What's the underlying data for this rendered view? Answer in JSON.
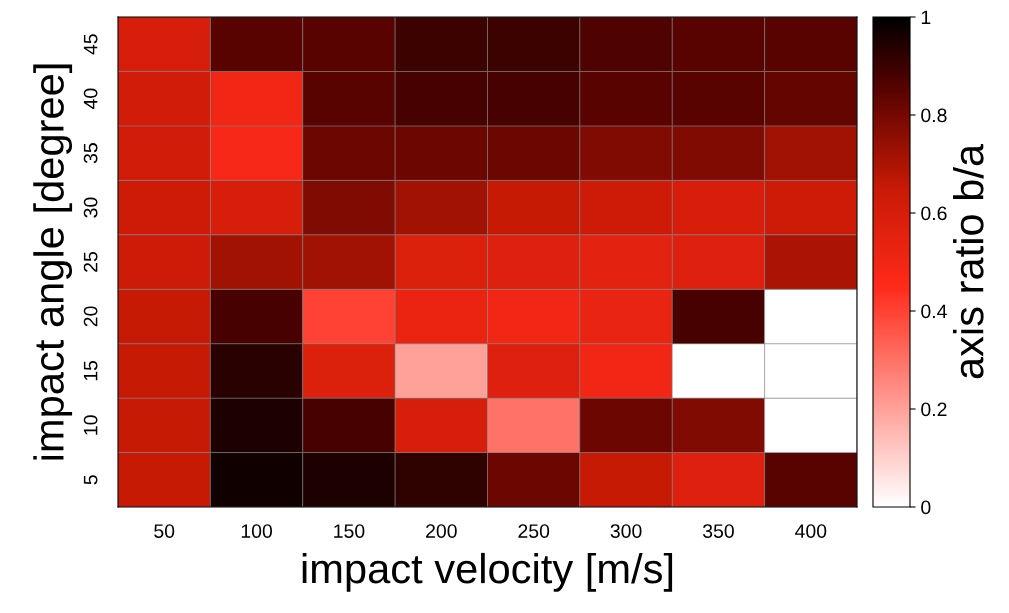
{
  "chart_data": {
    "type": "heatmap",
    "xlabel": "impact velocity [m/s]",
    "ylabel": "impact angle [degree]",
    "clabel": "axis ratio b/a",
    "categories": [
      "50",
      "100",
      "150",
      "200",
      "250",
      "300",
      "350",
      "400"
    ],
    "y_categories": [
      "45",
      "40",
      "35",
      "30",
      "25",
      "20",
      "15",
      "10",
      "5"
    ],
    "cells": [
      [
        0.6,
        0.85,
        0.85,
        0.9,
        0.9,
        0.87,
        0.85,
        0.85
      ],
      [
        0.62,
        0.5,
        0.85,
        0.88,
        0.88,
        0.85,
        0.85,
        0.83
      ],
      [
        0.62,
        0.48,
        0.82,
        0.82,
        0.82,
        0.78,
        0.78,
        0.72
      ],
      [
        0.63,
        0.6,
        0.78,
        0.72,
        0.65,
        0.63,
        0.6,
        0.63
      ],
      [
        0.63,
        0.72,
        0.72,
        0.58,
        0.57,
        0.55,
        0.57,
        0.7
      ],
      [
        0.65,
        0.88,
        0.4,
        0.52,
        0.5,
        0.53,
        0.88,
        0
      ],
      [
        0.65,
        0.93,
        0.58,
        0.2,
        0.57,
        0.5,
        0,
        0
      ],
      [
        0.65,
        0.95,
        0.88,
        0.6,
        0.3,
        0.82,
        0.78,
        0
      ],
      [
        0.65,
        0.97,
        0.95,
        0.92,
        0.82,
        0.65,
        0.57,
        0.85
      ]
    ],
    "clim": [
      0,
      1
    ],
    "cticks": [
      0,
      0.2,
      0.4,
      0.6,
      0.8,
      1
    ]
  }
}
